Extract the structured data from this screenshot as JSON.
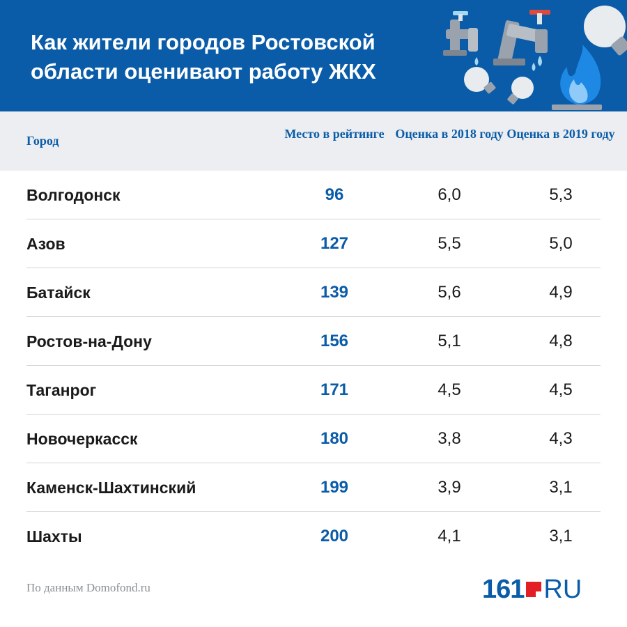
{
  "header": {
    "title": "Как жители городов Ростовской области оценивают работу ЖКХ",
    "background": "#0a5ca8",
    "decor_icons": [
      "water-tap-icon",
      "water-tap-icon",
      "light-bulb-icon",
      "light-bulb-icon",
      "light-bulb-icon",
      "gas-flame-icon"
    ]
  },
  "table": {
    "columns": {
      "city": "Город",
      "rank": "Место в рейтинге",
      "score_2018": "Оценка в 2018 году",
      "score_2019": "Оценка в 2019 году"
    },
    "rows": [
      {
        "city": "Волгодонск",
        "rank": "96",
        "score_2018": "6,0",
        "score_2019": "5,3"
      },
      {
        "city": "Азов",
        "rank": "127",
        "score_2018": "5,5",
        "score_2019": "5,0"
      },
      {
        "city": "Батайск",
        "rank": "139",
        "score_2018": "5,6",
        "score_2019": "4,9"
      },
      {
        "city": "Ростов-на-Дону",
        "rank": "156",
        "score_2018": "5,1",
        "score_2019": "4,8"
      },
      {
        "city": "Таганрог",
        "rank": "171",
        "score_2018": "4,5",
        "score_2019": "4,5"
      },
      {
        "city": "Новочеркасск",
        "rank": "180",
        "score_2018": "3,8",
        "score_2019": "4,3"
      },
      {
        "city": "Каменск-Шахтинский",
        "rank": "199",
        "score_2018": "3,9",
        "score_2019": "3,1"
      },
      {
        "city": "Шахты",
        "rank": "200",
        "score_2018": "4,1",
        "score_2019": "3,1"
      }
    ]
  },
  "footer": {
    "source": "По данным Domofond.ru",
    "logo_number": "161",
    "logo_suffix": "RU"
  },
  "colors": {
    "accent_blue": "#0a5ca8",
    "logo_red": "#e31e24",
    "header_row_bg": "#eceef1"
  },
  "chart_data": {
    "type": "table",
    "title": "Как жители городов Ростовской области оценивают работу ЖКХ",
    "columns": [
      "Город",
      "Место в рейтинге",
      "Оценка в 2018 году",
      "Оценка в 2019 году"
    ],
    "categories": [
      "Волгодонск",
      "Азов",
      "Батайск",
      "Ростов-на-Дону",
      "Таганрог",
      "Новочеркасск",
      "Каменск-Шахтинский",
      "Шахты"
    ],
    "series": [
      {
        "name": "Место в рейтинге",
        "values": [
          96,
          127,
          139,
          156,
          171,
          180,
          199,
          200
        ]
      },
      {
        "name": "Оценка в 2018 году",
        "values": [
          6.0,
          5.5,
          5.6,
          5.1,
          4.5,
          3.8,
          3.9,
          4.1
        ]
      },
      {
        "name": "Оценка в 2019 году",
        "values": [
          5.3,
          5.0,
          4.9,
          4.8,
          4.5,
          4.3,
          3.1,
          3.1
        ]
      }
    ]
  }
}
